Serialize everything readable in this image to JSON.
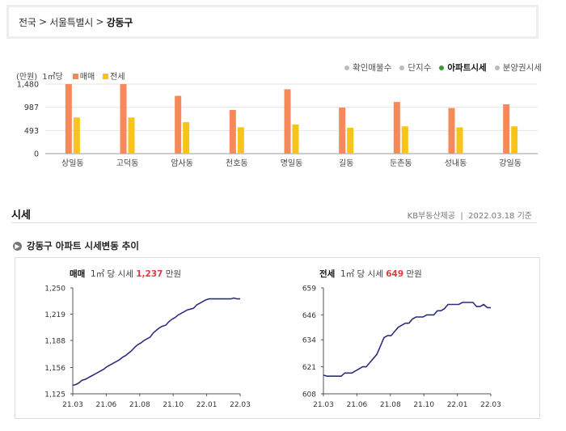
{
  "breadcrumb": [
    "전국",
    "서울특별시",
    "강동구"
  ],
  "tabs": [
    {
      "label": "확인매물수",
      "active": false
    },
    {
      "label": "단지수",
      "active": false
    },
    {
      "label": "아파트시세",
      "active": true
    },
    {
      "label": "분양권시세",
      "active": false
    }
  ],
  "legend": {
    "unit": "(만원)",
    "per": "1㎡당",
    "sale": "매매",
    "jeonse": "전세"
  },
  "colors": {
    "sale": "#f5895a",
    "jeonse": "#f8c31a",
    "line": "#2c2f7c",
    "active_dot": "#3a9a3a",
    "price": "#e03a3a"
  },
  "section": {
    "title": "시세",
    "source": "KB부동산제공",
    "date": "2022.03.18 기준"
  },
  "subtitle": "강동구 아파트 시세변동 추이",
  "chart_data": [
    {
      "type": "bar",
      "categories": [
        "상일동",
        "고덕동",
        "암사동",
        "천호동",
        "명일동",
        "길동",
        "둔촌동",
        "성내동",
        "강일동"
      ],
      "series": [
        {
          "name": "매매",
          "values": [
            1480,
            1480,
            1230,
            930,
            1370,
            980,
            1100,
            970,
            1050
          ]
        },
        {
          "name": "전세",
          "values": [
            770,
            770,
            670,
            560,
            620,
            550,
            580,
            560,
            580
          ]
        }
      ],
      "yticks": [
        0,
        493,
        987,
        1480
      ],
      "ylabel": "(만원)",
      "ylim": [
        0,
        1480
      ]
    },
    {
      "type": "line",
      "title": "매매",
      "label_per": "1㎡ 당 시세",
      "price": "1,237",
      "unit": "만원",
      "xticks": [
        "21.03",
        "21.06",
        "21.08",
        "21.10",
        "22.01",
        "22.03"
      ],
      "yticks": [
        1125,
        1156,
        1188,
        1219,
        1250
      ],
      "ytick_labels": [
        "1,125",
        "1,156",
        "1,188",
        "1,219",
        "1,250"
      ],
      "ylim": [
        1125,
        1250
      ],
      "values": [
        1135,
        1136,
        1138,
        1141,
        1142,
        1144,
        1146,
        1148,
        1150,
        1152,
        1154,
        1157,
        1159,
        1161,
        1163,
        1165,
        1168,
        1170,
        1173,
        1176,
        1180,
        1183,
        1185,
        1188,
        1190,
        1192,
        1197,
        1200,
        1203,
        1205,
        1206,
        1210,
        1213,
        1215,
        1218,
        1220,
        1222,
        1224,
        1225,
        1226,
        1230,
        1232,
        1234,
        1236,
        1237,
        1237,
        1237,
        1237,
        1237,
        1237,
        1237,
        1237,
        1238,
        1237,
        1237
      ]
    },
    {
      "type": "line",
      "title": "전세",
      "label_per": "1㎡ 당 시세",
      "price": "649",
      "unit": "만원",
      "xticks": [
        "21.03",
        "21.06",
        "21.08",
        "21.10",
        "22.01",
        "22.03"
      ],
      "yticks": [
        608,
        621,
        634,
        646,
        659
      ],
      "ytick_labels": [
        "608",
        "621",
        "634",
        "646",
        "659"
      ],
      "ylim": [
        608,
        659
      ],
      "values": [
        617,
        616.5,
        616.5,
        616.5,
        616.5,
        616.5,
        618,
        618,
        618,
        619,
        620,
        621,
        621,
        623,
        625,
        627,
        631,
        635,
        636,
        636,
        638,
        640,
        641,
        642,
        642,
        644,
        645,
        645,
        645,
        646,
        646,
        646,
        648,
        648,
        649,
        651,
        651,
        651,
        651,
        652,
        652,
        652,
        652,
        650,
        650,
        651,
        649.5,
        649.5
      ]
    }
  ]
}
